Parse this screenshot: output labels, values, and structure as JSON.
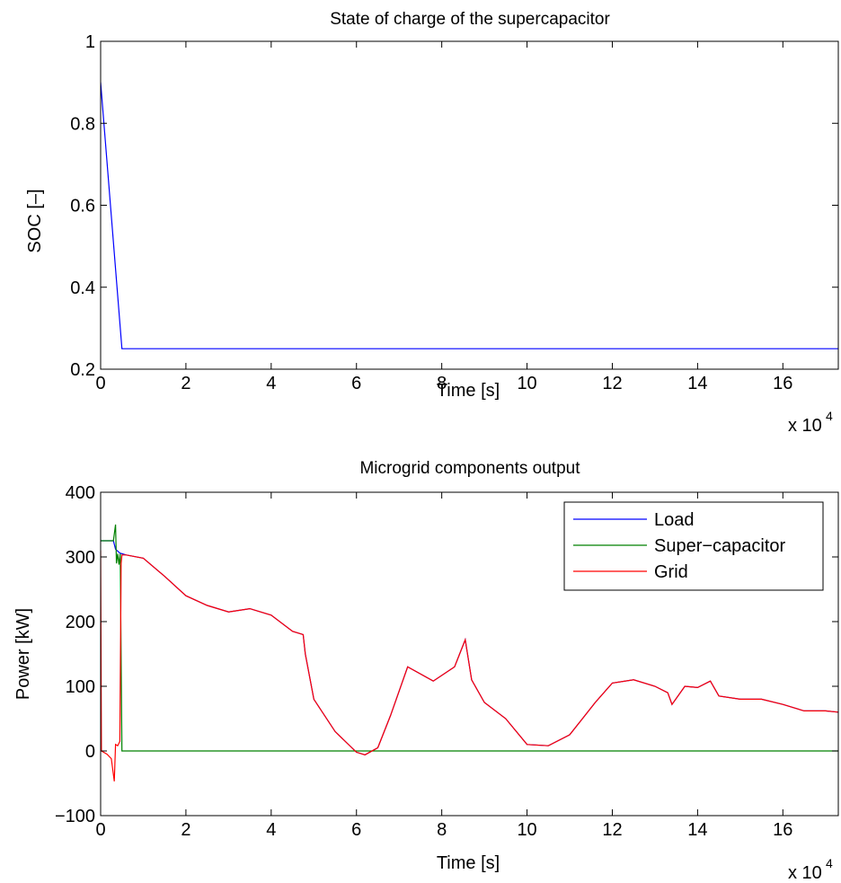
{
  "chart_data": [
    {
      "type": "line",
      "title": "State of charge of the supercapacitor",
      "xlabel": "Time [s]",
      "ylabel": "SOC [–]",
      "x_multiplier_label": "x 10",
      "x_multiplier_exponent": "4",
      "xlim": [
        0,
        17.3
      ],
      "ylim": [
        0.2,
        1.0
      ],
      "x_ticks": [
        "0",
        "2",
        "4",
        "6",
        "8",
        "10",
        "12",
        "14",
        "16"
      ],
      "y_ticks": [
        "0.2",
        "0.4",
        "0.6",
        "0.8",
        "1"
      ],
      "x_tick_values": [
        0,
        2,
        4,
        6,
        8,
        10,
        12,
        14,
        16
      ],
      "y_tick_values": [
        0.2,
        0.4,
        0.6,
        0.8,
        1.0
      ],
      "series": [
        {
          "color": "#0000ff",
          "points": [
            [
              0,
              0.9
            ],
            [
              0.5,
              0.25
            ],
            [
              17.3,
              0.25
            ]
          ]
        }
      ]
    },
    {
      "type": "line",
      "title": "Microgrid components output",
      "xlabel": "Time [s]",
      "ylabel": "Power [kW]",
      "x_multiplier_label": "x 10",
      "x_multiplier_exponent": "4",
      "xlim": [
        0,
        17.3
      ],
      "ylim": [
        -100,
        400
      ],
      "x_ticks": [
        "0",
        "2",
        "4",
        "6",
        "8",
        "10",
        "12",
        "14",
        "16"
      ],
      "y_ticks": [
        "−100",
        "0",
        "100",
        "200",
        "300",
        "400"
      ],
      "x_tick_values": [
        0,
        2,
        4,
        6,
        8,
        10,
        12,
        14,
        16
      ],
      "y_tick_values": [
        -100,
        0,
        100,
        200,
        300,
        400
      ],
      "legend_position": "top-right",
      "series": [
        {
          "name": "Load",
          "color": "#0000ff",
          "points": [
            [
              0,
              325
            ],
            [
              0.3,
              325
            ],
            [
              0.35,
              312
            ],
            [
              0.45,
              306
            ],
            [
              0.6,
              303
            ],
            [
              1.0,
              298
            ],
            [
              1.5,
              270
            ],
            [
              2.0,
              240
            ],
            [
              2.5,
              225
            ],
            [
              3.0,
              215
            ],
            [
              3.5,
              220
            ],
            [
              4.0,
              210
            ],
            [
              4.5,
              185
            ],
            [
              4.75,
              180
            ],
            [
              4.8,
              150
            ],
            [
              5.0,
              80
            ],
            [
              5.5,
              30
            ],
            [
              6.0,
              -2
            ],
            [
              6.2,
              -6
            ],
            [
              6.5,
              5
            ],
            [
              6.8,
              55
            ],
            [
              7.2,
              130
            ],
            [
              7.8,
              108
            ],
            [
              8.3,
              130
            ],
            [
              8.55,
              172
            ],
            [
              8.7,
              110
            ],
            [
              9.0,
              75
            ],
            [
              9.5,
              50
            ],
            [
              10.0,
              10
            ],
            [
              10.5,
              8
            ],
            [
              11.0,
              25
            ],
            [
              11.3,
              50
            ],
            [
              11.6,
              75
            ],
            [
              12.0,
              105
            ],
            [
              12.5,
              110
            ],
            [
              13.0,
              100
            ],
            [
              13.3,
              90
            ],
            [
              13.4,
              72
            ],
            [
              13.7,
              100
            ],
            [
              14.0,
              98
            ],
            [
              14.3,
              108
            ],
            [
              14.5,
              85
            ],
            [
              15.0,
              80
            ],
            [
              15.5,
              80
            ],
            [
              16.0,
              72
            ],
            [
              16.5,
              62
            ],
            [
              17.0,
              62
            ],
            [
              17.3,
              60
            ]
          ]
        },
        {
          "name": "Super−capacitor",
          "color": "#008000",
          "points": [
            [
              0,
              325
            ],
            [
              0.3,
              325
            ],
            [
              0.35,
              350
            ],
            [
              0.37,
              290
            ],
            [
              0.4,
              305
            ],
            [
              0.43,
              288
            ],
            [
              0.46,
              305
            ],
            [
              0.5,
              0
            ],
            [
              17.3,
              0
            ]
          ]
        },
        {
          "name": "Grid",
          "color": "#ff0000",
          "points": [
            [
              0,
              310
            ],
            [
              0.02,
              0
            ],
            [
              0.15,
              -5
            ],
            [
              0.25,
              -12
            ],
            [
              0.32,
              -47
            ],
            [
              0.35,
              10
            ],
            [
              0.4,
              8
            ],
            [
              0.45,
              15
            ],
            [
              0.48,
              290
            ],
            [
              0.5,
              303
            ],
            [
              0.6,
              303
            ],
            [
              1.0,
              298
            ],
            [
              1.5,
              270
            ],
            [
              2.0,
              240
            ],
            [
              2.5,
              225
            ],
            [
              3.0,
              215
            ],
            [
              3.5,
              220
            ],
            [
              4.0,
              210
            ],
            [
              4.5,
              185
            ],
            [
              4.75,
              180
            ],
            [
              4.8,
              150
            ],
            [
              5.0,
              80
            ],
            [
              5.5,
              30
            ],
            [
              6.0,
              -2
            ],
            [
              6.2,
              -6
            ],
            [
              6.5,
              5
            ],
            [
              6.8,
              55
            ],
            [
              7.2,
              130
            ],
            [
              7.8,
              108
            ],
            [
              8.3,
              130
            ],
            [
              8.55,
              172
            ],
            [
              8.7,
              110
            ],
            [
              9.0,
              75
            ],
            [
              9.5,
              50
            ],
            [
              10.0,
              10
            ],
            [
              10.5,
              8
            ],
            [
              11.0,
              25
            ],
            [
              11.3,
              50
            ],
            [
              11.6,
              75
            ],
            [
              12.0,
              105
            ],
            [
              12.5,
              110
            ],
            [
              13.0,
              100
            ],
            [
              13.3,
              90
            ],
            [
              13.4,
              72
            ],
            [
              13.7,
              100
            ],
            [
              14.0,
              98
            ],
            [
              14.3,
              108
            ],
            [
              14.5,
              85
            ],
            [
              15.0,
              80
            ],
            [
              15.5,
              80
            ],
            [
              16.0,
              72
            ],
            [
              16.5,
              62
            ],
            [
              17.0,
              62
            ],
            [
              17.3,
              60
            ]
          ]
        }
      ]
    }
  ]
}
